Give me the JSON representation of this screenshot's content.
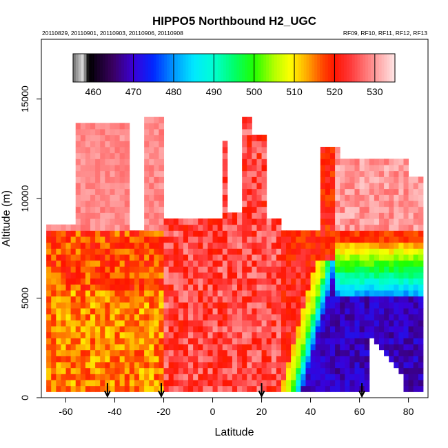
{
  "chart_data": {
    "type": "heatmap",
    "title": "HIPPO5 Northbound H2_UGC",
    "subtitle_left": "20110829, 20110901, 20110903, 20110906, 20110908",
    "subtitle_right": "RF09, RF10, RF11, RF12, RF13",
    "xlabel": "Latitude",
    "ylabel": "Altitude (m)",
    "xlim": [
      -70,
      88
    ],
    "ylim": [
      0,
      18000
    ],
    "x_ticks": [
      -60,
      -40,
      -20,
      0,
      20,
      40,
      60,
      80
    ],
    "x_tick_labels": [
      "-60",
      "-40",
      "-20",
      "0",
      "20",
      "40",
      "60",
      "80"
    ],
    "y_ticks": [
      0,
      5000,
      10000,
      15000
    ],
    "y_tick_labels": [
      "0",
      "5000",
      "10000",
      "15000"
    ],
    "colorbar": {
      "range": [
        455,
        535
      ],
      "ticks": [
        460,
        470,
        480,
        490,
        500,
        510,
        520,
        530
      ],
      "tick_labels": [
        "460",
        "470",
        "480",
        "490",
        "500",
        "510",
        "520",
        "530"
      ],
      "position": "top-inside"
    },
    "flight_markers_latitude": [
      -43,
      -21,
      20,
      61
    ],
    "grid": false
  }
}
